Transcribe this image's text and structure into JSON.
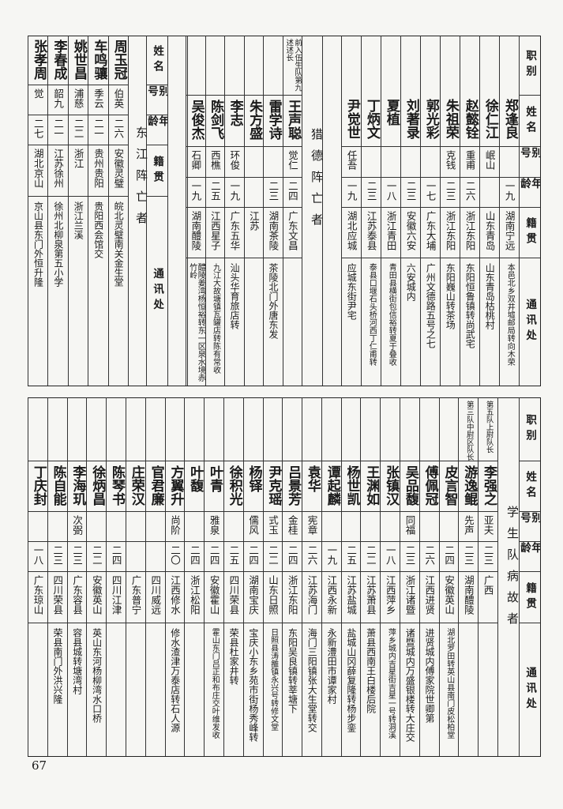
{
  "headers": {
    "role": "职别",
    "name": "姓名",
    "alias": "别号",
    "age": "年龄",
    "native": "籍贯",
    "address": "通讯处"
  },
  "top": {
    "continued": [
      {
        "name": "郑逢良",
        "alias": "",
        "age": "一九",
        "native": "湖南宁远",
        "address": "本邑北乡双井墟邮局转向木荣"
      },
      {
        "name": "徐仁江",
        "alias": "岷山",
        "age": "",
        "native": "山东青岛",
        "address": "山东青岛枯桃村"
      },
      {
        "name": "赵懿铨",
        "alias": "重甫",
        "age": "二六",
        "native": "浙江东阳",
        "address": "东阳恒鲁镇转尚武宅"
      },
      {
        "name": "朱祖荣",
        "alias": "克钱",
        "age": "二三",
        "native": "浙江东阳",
        "address": "东阳巍山转茶场"
      },
      {
        "name": "郭光彩",
        "alias": "",
        "age": "一七",
        "native": "广东大埔",
        "address": "广州文德路五号之七"
      },
      {
        "name": "刘著录",
        "alias": "",
        "age": "二三",
        "native": "安徽六安",
        "address": "六安城内"
      },
      {
        "name": "夏植",
        "alias": "",
        "age": "一八",
        "native": "浙江青田",
        "address": "青田县横街包信裕转夏于叠收"
      },
      {
        "name": "丁炳文",
        "alias": "",
        "age": "二三",
        "native": "江苏泰县",
        "address": "泰县口堰石头桥河西丁仁甫转"
      },
      {
        "name": "尹觉世",
        "alias": "任吾",
        "age": "一九",
        "native": "湖北应城",
        "address": "应城东街尹宅"
      }
    ],
    "liede": {
      "title": "猎德阵亡者",
      "members": [
        {
          "role": "前入伍生队第九述述长",
          "name": "王声聪",
          "alias": "觉仁",
          "age": "二四",
          "native": "广东文昌",
          "address": ""
        },
        {
          "role": "",
          "name": "雷学诗",
          "alias": "",
          "age": "二三",
          "native": "湖南茶陵",
          "address": "茶陵北门外唐东发"
        },
        {
          "role": "",
          "name": "朱方盛",
          "alias": "",
          "age": "",
          "native": "江苏",
          "address": ""
        },
        {
          "role": "",
          "name": "李志",
          "alias": "环俊",
          "age": "一九",
          "native": "广东五华",
          "address": "汕头华育旅店转"
        },
        {
          "role": "",
          "name": "陈剑飞",
          "alias": "西樵",
          "age": "二五",
          "native": "江西星子",
          "address": "九江大故塘镇瓦罐店转陈有常收"
        },
        {
          "role": "",
          "name": "吴俊杰",
          "alias": "石卿",
          "age": "一九",
          "native": "湖南醴陵",
          "address": "醴陵姜湾杨恒裕转东一区泉水境赤竹岭"
        }
      ]
    },
    "dongjiang": {
      "title": "东江阵亡者",
      "members": [
        {
          "name": "周玉冠",
          "alias": "伯英",
          "age": "二六",
          "native": "安徽灵璧",
          "address": "皖北灵璧南关金生堂"
        },
        {
          "name": "车鸣骧",
          "alias": "季云",
          "age": "二一",
          "native": "贵州贵阳",
          "address": "贵阳西会馆交"
        },
        {
          "name": "姚世昌",
          "alias": "浦慈",
          "age": "二二",
          "native": "浙江",
          "address": "浙江兰溪"
        },
        {
          "name": "李春成",
          "alias": "韶九",
          "age": "二一",
          "native": "江苏徐州",
          "address": "徐州北柳泉第五小学"
        },
        {
          "name": "张孝周",
          "alias": "觉",
          "age": "二七",
          "native": "湖北京山",
          "address": "京山县东门外恒升隆"
        }
      ]
    }
  },
  "bottom": {
    "title": "学生队病故者",
    "members": [
      {
        "role": "第五队上尉队长",
        "name": "李强之",
        "alias": "亚夫",
        "age": "二三",
        "native": "广西",
        "address": ""
      },
      {
        "role": "第三队中尉区队长",
        "name": "游逸鲲",
        "alias": "先声",
        "age": "二三",
        "native": "湖南醴陵",
        "address": ""
      },
      {
        "role": "",
        "name": "皮言智",
        "alias": "",
        "age": "二四",
        "native": "安徽英山",
        "address": "湖北罗田转英山县南门皮松柏堂"
      },
      {
        "role": "",
        "name": "傅佩冠",
        "alias": "",
        "age": "二六",
        "native": "江西进贤",
        "address": "进贤城内傅家院世卿第"
      },
      {
        "role": "",
        "name": "吴品馥",
        "alias": "同福",
        "age": "二三",
        "native": "浙江诸暨",
        "address": "诸暨城内万盛银楼转大庄交"
      },
      {
        "role": "",
        "name": "张镇汉",
        "alias": "",
        "age": "一八",
        "native": "江西萍乡",
        "address": "萍乡城内吉星街吉星一号转洞溪"
      },
      {
        "role": "",
        "name": "王渊如",
        "alias": "",
        "age": "二二",
        "native": "江苏萧县",
        "address": "萧县西南王白楼后院"
      },
      {
        "role": "",
        "name": "杨世凯",
        "alias": "",
        "age": "二五",
        "native": "江苏盐城",
        "address": "盐城山冈薛复隆转杨步銮"
      },
      {
        "role": "",
        "name": "谭起麟",
        "alias": "",
        "age": "一九",
        "native": "江西永新",
        "address": "永新澧田市谭家村"
      },
      {
        "role": "",
        "name": "袁华",
        "alias": "宪章",
        "age": "二六",
        "native": "江苏海门",
        "address": "海门三阳镇张大生堂转交"
      },
      {
        "role": "",
        "name": "吕景芳",
        "alias": "金桂",
        "age": "二四",
        "native": "浙江东阳",
        "address": "东阳吴良镇转莘塘下"
      },
      {
        "role": "",
        "name": "尹克瑶",
        "alias": "式玉",
        "age": "二二",
        "native": "山东日照",
        "address": "日照县涛雒镇永兴号转修文堂"
      },
      {
        "role": "",
        "name": "杨铎",
        "alias": "儒风",
        "age": "二四",
        "native": "湖南宝庆",
        "address": "宝庆小东乡苑市街杨秀峰转"
      },
      {
        "role": "",
        "name": "徐积光",
        "alias": "",
        "age": "二五",
        "native": "四川荣县",
        "address": "荣县杜家井转"
      },
      {
        "role": "",
        "name": "叶青",
        "alias": "雅泉",
        "age": "二四",
        "native": "安徽霍山",
        "address": "霍山东门吕正和布庄交叶维发收"
      },
      {
        "role": "",
        "name": "叶馥",
        "alias": "",
        "age": "二四",
        "native": "浙江松阳",
        "address": ""
      },
      {
        "role": "",
        "name": "方翼升",
        "alias": "尚阶",
        "age": "二〇",
        "native": "江西修水",
        "address": "修水渣津万泰店转石人源"
      },
      {
        "role": "",
        "name": "官君廉",
        "alias": "",
        "age": "",
        "native": "四川威远",
        "address": ""
      },
      {
        "role": "",
        "name": "庄荣汉",
        "alias": "",
        "age": "",
        "native": "广东普宁",
        "address": ""
      },
      {
        "role": "",
        "name": "陈琴书",
        "alias": "",
        "age": "二四",
        "native": "四川江津",
        "address": ""
      },
      {
        "role": "",
        "name": "徐炳昌",
        "alias": "",
        "age": "二二",
        "native": "安徽英山",
        "address": "英山东河杨柳湾水口桥"
      },
      {
        "role": "",
        "name": "李海玑",
        "alias": "次弼",
        "age": "二三",
        "native": "广东容县",
        "address": "容县城转塘湾村"
      },
      {
        "role": "",
        "name": "陈自能",
        "alias": "",
        "age": "二三",
        "native": "四川荣县",
        "address": "荣县南门外洪兴隆"
      },
      {
        "role": "",
        "name": "丁庆封",
        "alias": "",
        "age": "一八",
        "native": "广东琼山",
        "address": ""
      }
    ]
  },
  "page_number": "67"
}
